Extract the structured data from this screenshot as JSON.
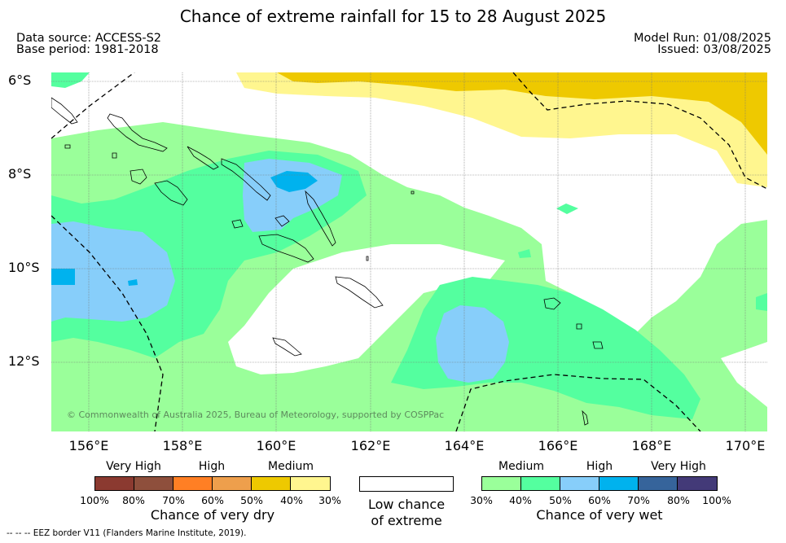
{
  "title": "Chance of extreme rainfall for 15 to 28 August 2025",
  "data_source": "Data source: ACCESS-S2",
  "base_period": "Base period: 1981-2018",
  "model_run": "Model Run: 01/08/2025",
  "issued": "Issued: 03/08/2025",
  "copyright": "© Commonwealth of Australia 2025, Bureau of Meteorology, supported by COSPPac",
  "map": {
    "lon_labels": [
      "156°E",
      "158°E",
      "160°E",
      "162°E",
      "164°E",
      "166°E",
      "168°E",
      "170°E"
    ],
    "lat_labels": [
      "6°S",
      "8°S",
      "10°S",
      "12°S"
    ]
  },
  "legend_dry": {
    "headers": [
      "Very High",
      "High",
      "Medium"
    ],
    "ticks": [
      "100%",
      "80%",
      "70%",
      "60%",
      "50%",
      "40%",
      "30%"
    ],
    "colors": [
      "#8b3a30",
      "#8e4f3c",
      "#ff7f24",
      "#ee9f4c",
      "#eec900",
      "#fff68f"
    ],
    "title": "Chance of very dry"
  },
  "legend_low": {
    "line1": "Low chance",
    "line2": "of extreme",
    "color": "#ffffff"
  },
  "legend_wet": {
    "headers": [
      "Medium",
      "High",
      "Very High"
    ],
    "ticks": [
      "30%",
      "40%",
      "50%",
      "60%",
      "70%",
      "80%",
      "100%"
    ],
    "colors": [
      "#9aff9a",
      "#54ff9f",
      "#87cefa",
      "#00b2ee",
      "#36649b",
      "#433a78"
    ],
    "title": "Chance of very wet"
  },
  "footnote": "--  --  -- EEZ border V11 (Flanders Marine Institute, 2019)."
}
